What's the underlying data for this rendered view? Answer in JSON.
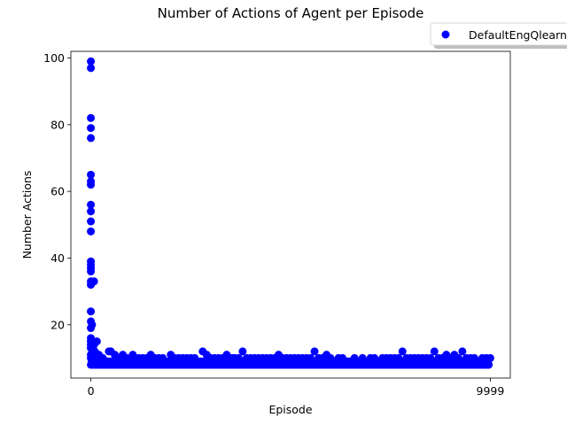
{
  "chart_data": {
    "type": "scatter",
    "title": "Number of Actions of Agent per Episode",
    "xlabel": "Episode",
    "ylabel": "Number Actions",
    "xlim": [
      -500,
      10500
    ],
    "ylim": [
      4,
      102
    ],
    "x_ticks": [
      0,
      9999
    ],
    "x_tick_labels": [
      "0",
      "9999"
    ],
    "y_ticks": [
      20,
      40,
      60,
      80,
      100
    ],
    "legend_position": "top-right, outside axes",
    "grid": false,
    "colors": {
      "points": "#0000ff"
    },
    "series": [
      {
        "name": "DefaultEngQlearning",
        "early_points": [
          [
            0,
            99
          ],
          [
            0,
            97
          ],
          [
            0,
            82
          ],
          [
            0,
            79
          ],
          [
            0,
            76
          ],
          [
            0,
            65
          ],
          [
            0,
            63
          ],
          [
            0,
            62
          ],
          [
            0,
            56
          ],
          [
            0,
            54
          ],
          [
            0,
            51
          ],
          [
            0,
            48
          ],
          [
            0,
            39
          ],
          [
            0,
            38
          ],
          [
            0,
            37
          ],
          [
            0,
            36
          ],
          [
            0,
            33
          ],
          [
            0,
            32
          ],
          [
            80,
            33
          ],
          [
            0,
            24
          ],
          [
            0,
            21
          ],
          [
            30,
            20
          ],
          [
            0,
            19
          ],
          [
            0,
            16
          ],
          [
            0,
            15
          ],
          [
            60,
            15
          ],
          [
            150,
            15
          ],
          [
            0,
            14
          ],
          [
            80,
            14
          ],
          [
            0,
            13
          ],
          [
            40,
            12
          ],
          [
            100,
            12
          ],
          [
            0,
            11
          ],
          [
            60,
            11
          ],
          [
            120,
            11
          ],
          [
            0,
            10
          ],
          [
            40,
            10
          ]
        ],
        "baseline_min": 8,
        "baseline_max": 9,
        "spike_points": [
          [
            200,
            11
          ],
          [
            250,
            10
          ],
          [
            300,
            10
          ],
          [
            450,
            12
          ],
          [
            500,
            12
          ],
          [
            600,
            11
          ],
          [
            700,
            10
          ],
          [
            800,
            11
          ],
          [
            900,
            10
          ],
          [
            1000,
            10
          ],
          [
            1050,
            11
          ],
          [
            1100,
            10
          ],
          [
            1200,
            10
          ],
          [
            1300,
            10
          ],
          [
            1400,
            10
          ],
          [
            1500,
            11
          ],
          [
            1600,
            10
          ],
          [
            1700,
            10
          ],
          [
            1800,
            10
          ],
          [
            2000,
            11
          ],
          [
            2100,
            10
          ],
          [
            2200,
            10
          ],
          [
            2300,
            10
          ],
          [
            2400,
            10
          ],
          [
            2500,
            10
          ],
          [
            2600,
            10
          ],
          [
            2800,
            12
          ],
          [
            2900,
            11
          ],
          [
            3000,
            10
          ],
          [
            3100,
            10
          ],
          [
            3200,
            10
          ],
          [
            3300,
            10
          ],
          [
            3400,
            11
          ],
          [
            3500,
            10
          ],
          [
            3550,
            10
          ],
          [
            3600,
            10
          ],
          [
            3700,
            10
          ],
          [
            3800,
            12
          ],
          [
            3900,
            10
          ],
          [
            4000,
            10
          ],
          [
            4100,
            10
          ],
          [
            4200,
            10
          ],
          [
            4300,
            10
          ],
          [
            4400,
            10
          ],
          [
            4500,
            10
          ],
          [
            4600,
            10
          ],
          [
            4700,
            11
          ],
          [
            4800,
            10
          ],
          [
            4900,
            10
          ],
          [
            5000,
            10
          ],
          [
            5100,
            10
          ],
          [
            5200,
            10
          ],
          [
            5300,
            10
          ],
          [
            5400,
            10
          ],
          [
            5500,
            10
          ],
          [
            5600,
            12
          ],
          [
            5700,
            10
          ],
          [
            5800,
            10
          ],
          [
            5900,
            11
          ],
          [
            6000,
            10
          ],
          [
            6200,
            10
          ],
          [
            6300,
            10
          ],
          [
            6500,
            9
          ],
          [
            6600,
            10
          ],
          [
            6700,
            9
          ],
          [
            6800,
            10
          ],
          [
            7000,
            10
          ],
          [
            7100,
            10
          ],
          [
            7300,
            10
          ],
          [
            7400,
            10
          ],
          [
            7500,
            10
          ],
          [
            7600,
            10
          ],
          [
            7700,
            10
          ],
          [
            7800,
            12
          ],
          [
            7900,
            10
          ],
          [
            8000,
            10
          ],
          [
            8100,
            10
          ],
          [
            8200,
            10
          ],
          [
            8300,
            10
          ],
          [
            8400,
            10
          ],
          [
            8500,
            10
          ],
          [
            8600,
            12
          ],
          [
            8700,
            10
          ],
          [
            8800,
            10
          ],
          [
            8900,
            11
          ],
          [
            9000,
            10
          ],
          [
            9100,
            11
          ],
          [
            9200,
            10
          ],
          [
            9300,
            12
          ],
          [
            9400,
            10
          ],
          [
            9500,
            10
          ],
          [
            9600,
            10
          ],
          [
            9700,
            9
          ],
          [
            9800,
            10
          ],
          [
            9900,
            10
          ],
          [
            9999,
            10
          ]
        ]
      }
    ]
  }
}
